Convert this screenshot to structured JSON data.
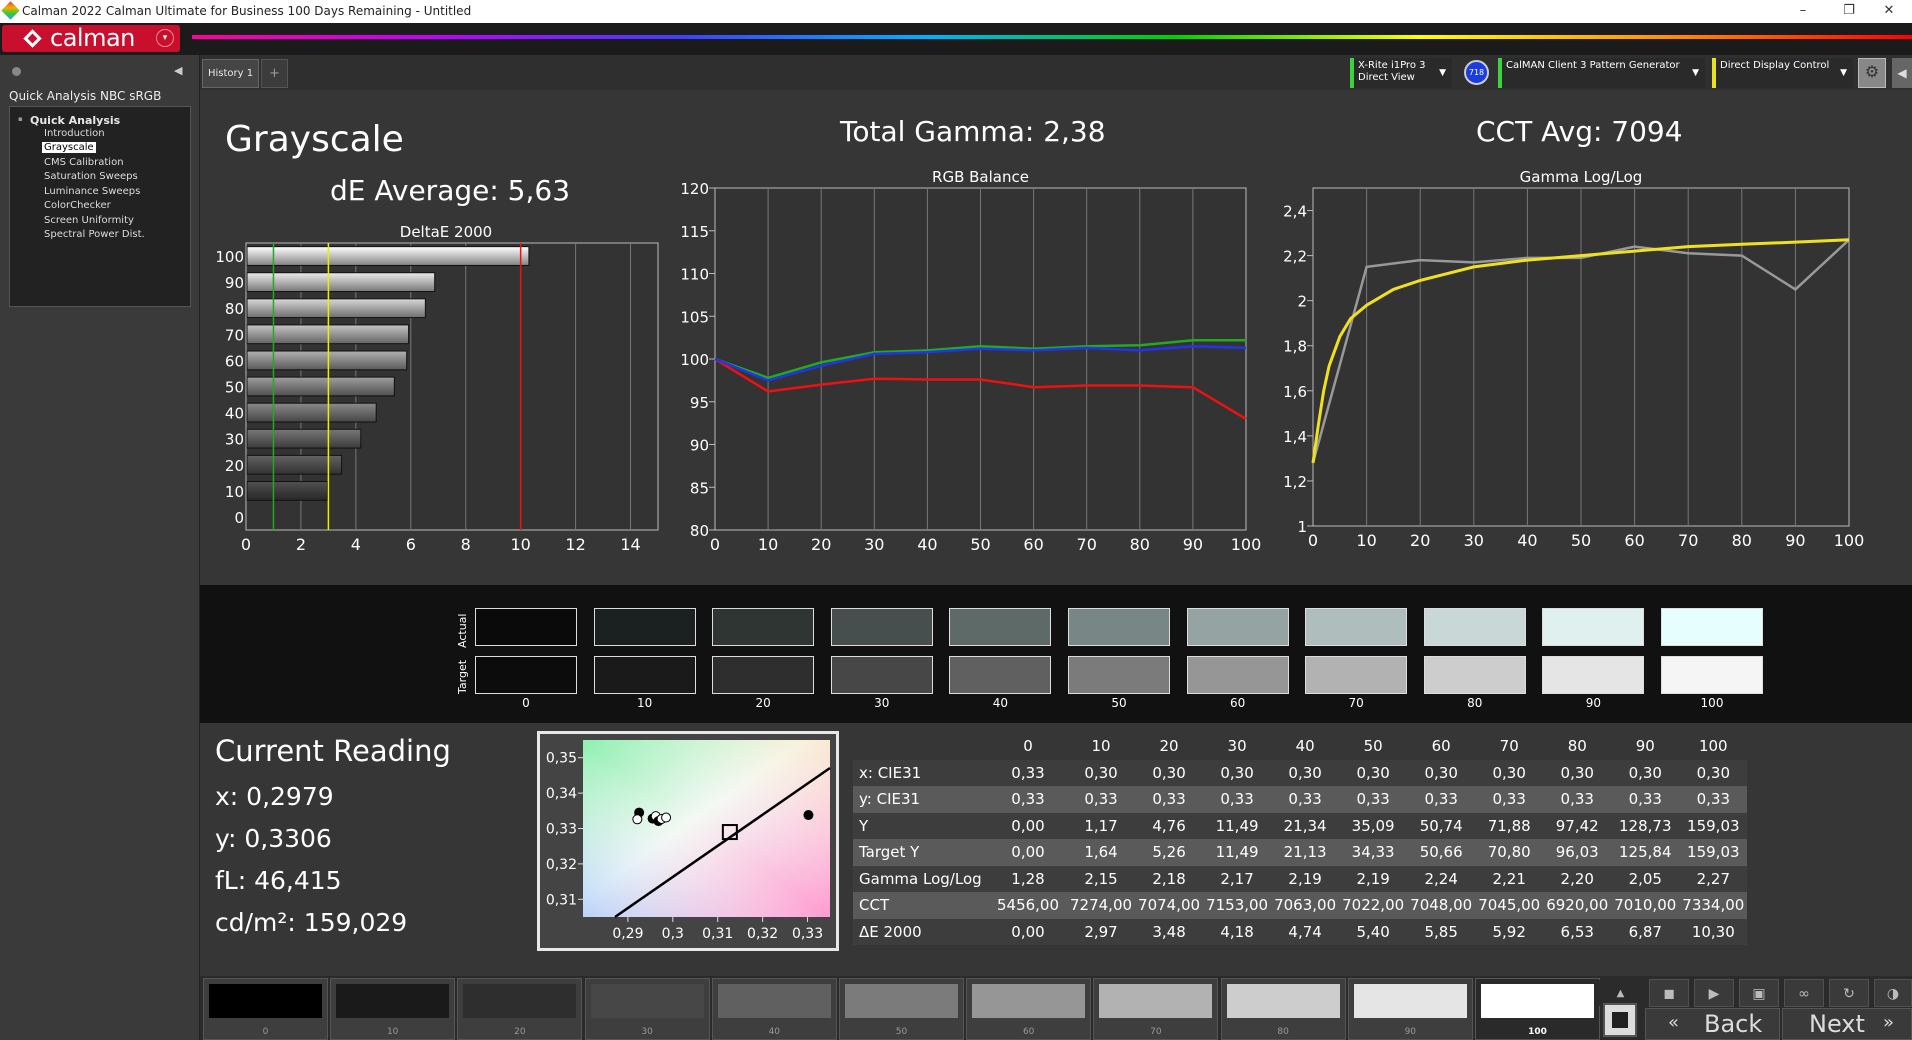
{
  "window": {
    "title": "Calman 2022 Calman Ultimate for Business 100 Days Remaining  - Untitled",
    "min": "–",
    "max": "❐",
    "close": "✕"
  },
  "logo": {
    "text": "calman",
    "dropdown": "▾"
  },
  "sidebar": {
    "collapse": "◀",
    "panel_title": "Quick Analysis NBC sRGB",
    "group": "Quick Analysis",
    "items": [
      {
        "label": "Introduction",
        "selected": false
      },
      {
        "label": "Grayscale",
        "selected": true
      },
      {
        "label": "CMS Calibration",
        "selected": false
      },
      {
        "label": "Saturation Sweeps",
        "selected": false
      },
      {
        "label": "Luminance Sweeps",
        "selected": false
      },
      {
        "label": "ColorChecker",
        "selected": false
      },
      {
        "label": "Screen Uniformity",
        "selected": false
      },
      {
        "label": "Spectral Power Dist.",
        "selected": false
      }
    ]
  },
  "tabs": {
    "history": "History 1",
    "add": "+"
  },
  "devices": {
    "meter_line1": "X-Rite i1Pro 3",
    "meter_line2": "Direct View",
    "badge": "718",
    "pattern_gen": "CalMAN Client 3 Pattern Generator",
    "display_control": "Direct Display Control"
  },
  "headline": {
    "section": "Grayscale",
    "de_average": "dE Average: 5,63",
    "total_gamma": "Total Gamma: 2,38",
    "cct_avg": "CCT Avg: 7094"
  },
  "chart_data": [
    {
      "type": "bar",
      "title": "DeltaE 2000",
      "orientation": "horizontal",
      "categories": [
        "100",
        "90",
        "80",
        "70",
        "60",
        "50",
        "40",
        "30",
        "20",
        "10",
        "0"
      ],
      "values": [
        10.3,
        6.87,
        6.53,
        5.92,
        5.85,
        5.4,
        4.74,
        4.18,
        3.48,
        2.97,
        0.0
      ],
      "xlim": [
        0,
        15
      ],
      "x_ticks": [
        0,
        2,
        4,
        6,
        8,
        10,
        12,
        14
      ],
      "threshold_lines": [
        {
          "value": 1,
          "color": "#22aa22"
        },
        {
          "value": 3,
          "color": "#eeee00"
        },
        {
          "value": 10,
          "color": "#ee1111"
        }
      ]
    },
    {
      "type": "line",
      "title": "RGB Balance",
      "x": [
        0,
        10,
        20,
        30,
        40,
        50,
        60,
        70,
        80,
        90,
        100
      ],
      "ylim": [
        80,
        120
      ],
      "y_ticks": [
        80,
        85,
        90,
        95,
        100,
        105,
        110,
        115,
        120
      ],
      "series": [
        {
          "color": "#ee1111",
          "values": [
            100,
            96.2,
            97.0,
            97.7,
            97.6,
            97.6,
            96.7,
            96.9,
            96.9,
            96.7,
            93.0
          ]
        },
        {
          "color": "#22aa22",
          "values": [
            100,
            97.8,
            99.6,
            100.8,
            101.0,
            101.5,
            101.2,
            101.5,
            101.6,
            102.2,
            102.2
          ]
        },
        {
          "color": "#2233ee",
          "values": [
            100,
            97.5,
            99.2,
            100.6,
            100.8,
            101.2,
            101.0,
            101.3,
            101.0,
            101.5,
            101.3
          ]
        }
      ]
    },
    {
      "type": "line",
      "title": "Gamma Log/Log",
      "x": [
        0,
        10,
        20,
        30,
        40,
        50,
        60,
        70,
        80,
        90,
        100
      ],
      "ylim": [
        1,
        2.5
      ],
      "y_ticks": [
        1,
        1.2,
        1.4,
        1.6,
        1.8,
        2,
        2.2,
        2.4
      ],
      "y_tick_labels": [
        "1",
        "1,2",
        "1,4",
        "1,6",
        "1,8",
        "2",
        "2,2",
        "2,4"
      ],
      "series": [
        {
          "color": "#999999",
          "values": [
            1.28,
            2.15,
            2.18,
            2.17,
            2.19,
            2.19,
            2.24,
            2.21,
            2.2,
            2.05,
            2.27
          ]
        },
        {
          "color": "#f0e020",
          "x": [
            0,
            1,
            2,
            3,
            5,
            7,
            10,
            15,
            20,
            30,
            40,
            50,
            60,
            70,
            80,
            90,
            100
          ],
          "values": [
            1.28,
            1.45,
            1.6,
            1.71,
            1.84,
            1.92,
            1.98,
            2.05,
            2.09,
            2.15,
            2.18,
            2.2,
            2.22,
            2.24,
            2.25,
            2.26,
            2.27
          ]
        }
      ]
    },
    {
      "type": "scatter",
      "title": "",
      "xlim": [
        0.28,
        0.335
      ],
      "ylim": [
        0.305,
        0.355
      ],
      "x_ticks": [
        0.29,
        0.3,
        0.31,
        0.32,
        0.33
      ],
      "x_tick_labels": [
        "0,29",
        "0,3",
        "0,31",
        "0,32",
        "0,33"
      ],
      "y_ticks": [
        0.31,
        0.32,
        0.33,
        0.34,
        0.35
      ],
      "y_tick_labels": [
        "0,31",
        "0,32",
        "0,33",
        "0,34",
        "0,35"
      ],
      "points": [
        {
          "x": 0.2925,
          "y": 0.3345,
          "fill": "#000"
        },
        {
          "x": 0.2921,
          "y": 0.3326,
          "fill": "#fff"
        },
        {
          "x": 0.2955,
          "y": 0.3328,
          "fill": "#000"
        },
        {
          "x": 0.2962,
          "y": 0.3335,
          "fill": "#fff"
        },
        {
          "x": 0.2968,
          "y": 0.3321,
          "fill": "#000"
        },
        {
          "x": 0.2975,
          "y": 0.3327,
          "fill": "#fff"
        },
        {
          "x": 0.2985,
          "y": 0.3331,
          "fill": "#fff"
        },
        {
          "x": 0.3302,
          "y": 0.3338,
          "fill": "#000"
        }
      ],
      "target": {
        "x": 0.3127,
        "y": 0.329
      }
    }
  ],
  "swatches": {
    "actual_label": "Actual",
    "target_label": "Target",
    "levels": [
      "0",
      "10",
      "20",
      "30",
      "40",
      "50",
      "60",
      "70",
      "80",
      "90",
      "100"
    ],
    "actual": [
      "#0a0a0a",
      "#1b2120",
      "#2e3533",
      "#464f4d",
      "#5e6a68",
      "#788685",
      "#95a3a2",
      "#afbebd",
      "#c9d8d7",
      "#e0f0ef",
      "#e6fffe"
    ],
    "target": [
      "#0c0c0c",
      "#1a1a1a",
      "#2e2e2e",
      "#474747",
      "#606060",
      "#7b7b7b",
      "#969696",
      "#b2b2b2",
      "#cdcdcd",
      "#e5e5e5",
      "#f5f5f5"
    ]
  },
  "current_reading": {
    "title": "Current Reading",
    "x": "x: 0,2979",
    "y": "y: 0,3306",
    "fl": "fL: 46,415",
    "cd": "cd/m²: 159,029"
  },
  "table": {
    "columns": [
      "0",
      "10",
      "20",
      "30",
      "40",
      "50",
      "60",
      "70",
      "80",
      "90",
      "100"
    ],
    "rows": [
      {
        "label": "x: CIE31",
        "values": [
          "0,33",
          "0,30",
          "0,30",
          "0,30",
          "0,30",
          "0,30",
          "0,30",
          "0,30",
          "0,30",
          "0,30",
          "0,30"
        ]
      },
      {
        "label": "y: CIE31",
        "values": [
          "0,33",
          "0,33",
          "0,33",
          "0,33",
          "0,33",
          "0,33",
          "0,33",
          "0,33",
          "0,33",
          "0,33",
          "0,33"
        ]
      },
      {
        "label": "Y",
        "values": [
          "0,00",
          "1,17",
          "4,76",
          "11,49",
          "21,34",
          "35,09",
          "50,74",
          "71,88",
          "97,42",
          "128,73",
          "159,03"
        ]
      },
      {
        "label": "Target Y",
        "values": [
          "0,00",
          "1,64",
          "5,26",
          "11,49",
          "21,13",
          "34,33",
          "50,66",
          "70,80",
          "96,03",
          "125,84",
          "159,03"
        ]
      },
      {
        "label": "Gamma Log/Log",
        "values": [
          "1,28",
          "2,15",
          "2,18",
          "2,17",
          "2,19",
          "2,19",
          "2,24",
          "2,21",
          "2,20",
          "2,05",
          "2,27"
        ]
      },
      {
        "label": "CCT",
        "values": [
          "5456,00",
          "7274,00",
          "7074,00",
          "7153,00",
          "7063,00",
          "7022,00",
          "7048,00",
          "7045,00",
          "6920,00",
          "7010,00",
          "7334,00"
        ]
      },
      {
        "label": "ΔE 2000",
        "values": [
          "0,00",
          "2,97",
          "3,48",
          "4,18",
          "4,74",
          "5,40",
          "5,85",
          "5,92",
          "6,53",
          "6,87",
          "10,30"
        ]
      }
    ]
  },
  "patches": {
    "labels": [
      "0",
      "10",
      "20",
      "30",
      "40",
      "50",
      "60",
      "70",
      "80",
      "90",
      "100"
    ],
    "colors": [
      "#000000",
      "#1a1a1a",
      "#2e2e2e",
      "#474747",
      "#606060",
      "#7b7b7b",
      "#969696",
      "#b2b2b2",
      "#cdcdcd",
      "#e5e5e5",
      "#ffffff"
    ],
    "selected": "100"
  },
  "controls": {
    "back": "Back",
    "next": "Next"
  }
}
